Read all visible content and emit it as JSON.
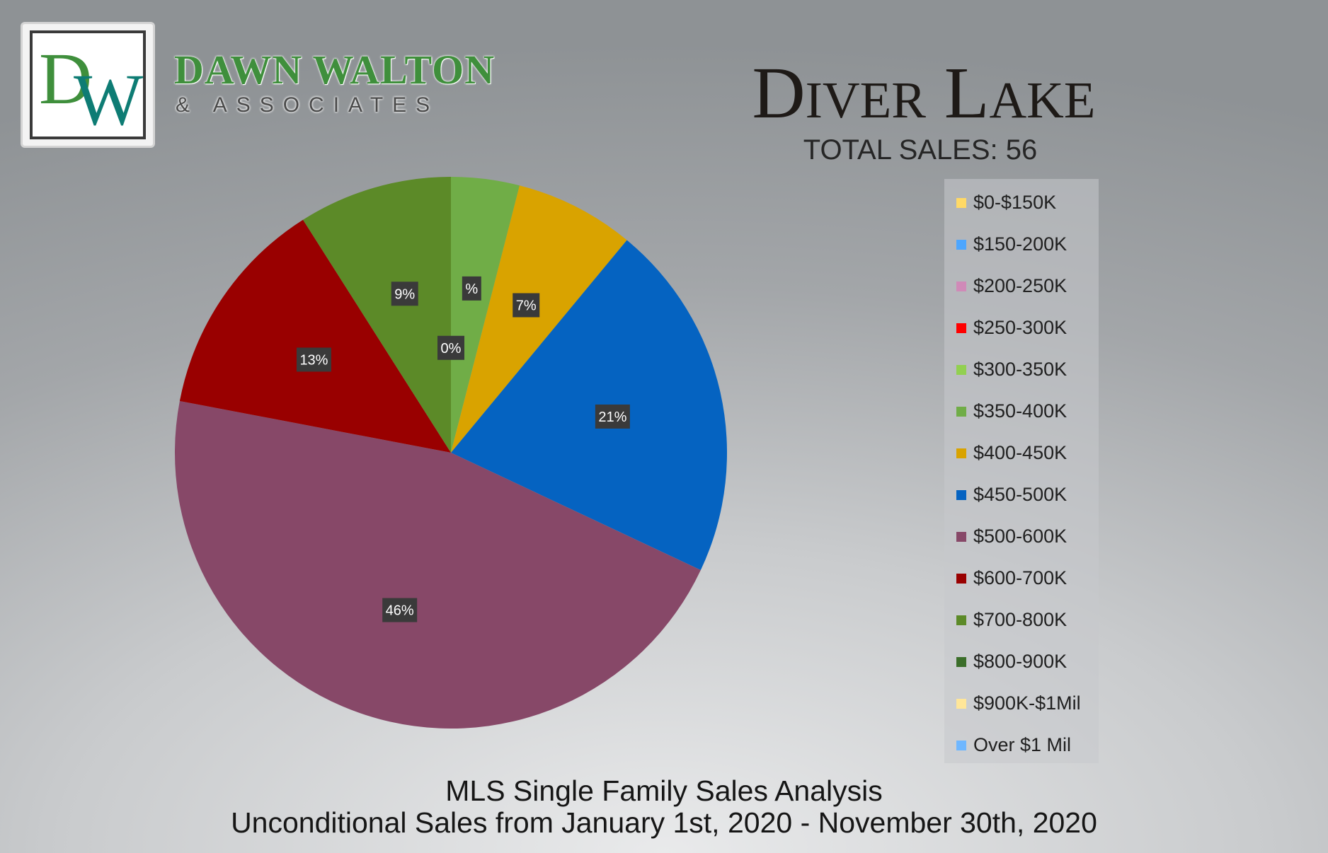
{
  "header": {
    "logo_monogram": "DW",
    "brand_name": "DAWN WALTON",
    "brand_sub": "& ASSOCIATES",
    "title": "Diver Lake",
    "total_sales": "TOTAL SALES: 56"
  },
  "footer": {
    "line1": "MLS Single Family Sales Analysis",
    "line2": "Unconditional Sales from January 1st, 2020 - November 30th, 2020"
  },
  "colors": {
    "brand_green": "#3f8f3c",
    "brand_teal": "#0e7c74"
  },
  "chart_data": {
    "type": "pie",
    "title": "Diver Lake",
    "start_angle": "12 o'clock, clockwise",
    "legend_position": "right",
    "slices": [
      {
        "name": "$0-$150K",
        "value": 0,
        "label": "",
        "color": "#ffd966"
      },
      {
        "name": "$150-200K",
        "value": 0,
        "label": "",
        "color": "#4da6ff"
      },
      {
        "name": "$200-250K",
        "value": 0,
        "label": "",
        "color": "#d08ab8"
      },
      {
        "name": "$250-300K",
        "value": 0,
        "label": "",
        "color": "#ff0000"
      },
      {
        "name": "$300-350K",
        "value": 0,
        "label": "",
        "color": "#92d050"
      },
      {
        "name": "$350-400K",
        "value": 4,
        "label": "%",
        "color": "#70ad47"
      },
      {
        "name": "$400-450K",
        "value": 7,
        "label": "7%",
        "color": "#d9a300"
      },
      {
        "name": "$450-500K",
        "value": 21,
        "label": "21%",
        "color": "#0563c1"
      },
      {
        "name": "$500-600K",
        "value": 46,
        "label": "46%",
        "color": "#874868"
      },
      {
        "name": "$600-700K",
        "value": 13,
        "label": "13%",
        "color": "#990000"
      },
      {
        "name": "$700-800K",
        "value": 9,
        "label": "9%",
        "color": "#5c8a28"
      },
      {
        "name": "$800-900K",
        "value": 0,
        "label": "0%",
        "color": "#3b6e2a"
      },
      {
        "name": "$900K-$1Mil",
        "value": 0,
        "label": "",
        "color": "#ffe699"
      },
      {
        "name": "Over $1 Mil",
        "value": 0,
        "label": "",
        "color": "#6fb7ff"
      }
    ]
  }
}
